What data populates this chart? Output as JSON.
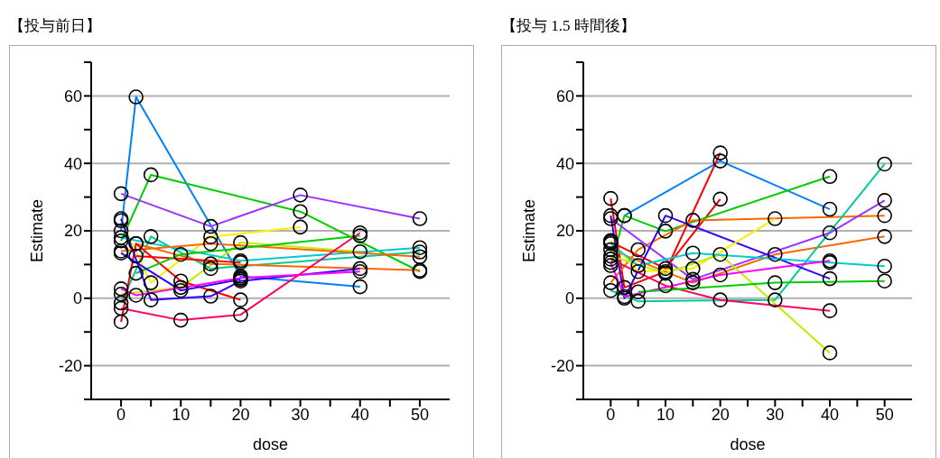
{
  "chart_data": [
    {
      "type": "line",
      "title": "【投与前日】",
      "xlabel": "dose",
      "ylabel": "Estimate",
      "xlim": [
        -5,
        55
      ],
      "ylim": [
        -30,
        70
      ],
      "marker": "circle",
      "grid": "y",
      "xticks": [
        0,
        {
          "value": 5,
          "label": null
        },
        10,
        {
          "value": 15,
          "label": null
        },
        20,
        {
          "value": 25,
          "label": null
        },
        30,
        {
          "value": 35,
          "label": null
        },
        40,
        {
          "value": 45,
          "label": null
        },
        50
      ],
      "yticks": [
        {
          "value": -30,
          "label": null
        },
        -20,
        {
          "value": -10,
          "label": null
        },
        0,
        {
          "value": 10,
          "label": null
        },
        20,
        {
          "value": 30,
          "label": null
        },
        40,
        {
          "value": 50,
          "label": null
        },
        60,
        {
          "value": 70,
          "label": null
        }
      ],
      "series": [
        {
          "color": "#0080ff",
          "x": [
            0,
            2.5,
            20,
            40
          ],
          "values": [
            20,
            59.7,
            6.5,
            3.4
          ]
        },
        {
          "color": "#00cc00",
          "x": [
            0,
            5,
            30,
            50
          ],
          "values": [
            17,
            36.6,
            25.7,
            7.9
          ]
        },
        {
          "color": "#9933ff",
          "x": [
            0,
            15,
            30,
            50
          ],
          "values": [
            31,
            21.3,
            30.6,
            23.6
          ]
        },
        {
          "color": "#ffee00",
          "x": [
            0,
            5,
            15,
            30
          ],
          "values": [
            23,
            4.6,
            18.2,
            21.1
          ]
        },
        {
          "color": "#bbee00",
          "x": [
            0,
            10,
            20,
            40
          ],
          "values": [
            1.2,
            3.2,
            16.5,
            13.8
          ]
        },
        {
          "color": "#00cc99",
          "x": [
            0,
            5,
            15,
            50
          ],
          "values": [
            -1.4,
            18.3,
            8.8,
            13.7
          ]
        },
        {
          "color": "#00cccc",
          "x": [
            0,
            20,
            50
          ],
          "values": [
            18,
            11.1,
            15
          ]
        },
        {
          "color": "#ff6600",
          "x": [
            0,
            15,
            50
          ],
          "values": [
            14,
            16.2,
            12.3
          ]
        },
        {
          "color": "#ff6600",
          "x": [
            2.5,
            15,
            50
          ],
          "values": [
            16.2,
            10.2,
            8.3
          ]
        },
        {
          "color": "#ff0000",
          "x": [
            0,
            2.5,
            10,
            20
          ],
          "values": [
            -7,
            16.2,
            5.1,
            -0.5
          ]
        },
        {
          "color": "#ff0000",
          "x": [
            2.5,
            20
          ],
          "values": [
            12.5,
            10.6
          ]
        },
        {
          "color": "#00cc00",
          "x": [
            2.5,
            10,
            40
          ],
          "values": [
            7.4,
            13,
            18.5
          ]
        },
        {
          "color": "#3300ff",
          "x": [
            0,
            5,
            15,
            20,
            40
          ],
          "values": [
            23.6,
            -0.5,
            0.6,
            5.1,
            8.8
          ]
        },
        {
          "color": "#3300ff",
          "x": [
            0,
            10,
            20
          ],
          "values": [
            13.4,
            2.3,
            5.6
          ]
        },
        {
          "color": "#ff00ff",
          "x": [
            0,
            2.5,
            20,
            40
          ],
          "values": [
            2.8,
            0.9,
            6,
            7.9
          ]
        },
        {
          "color": "#ff0066",
          "x": [
            0,
            10,
            20,
            40
          ],
          "values": [
            -3,
            -6.5,
            -4.9,
            19.4
          ]
        }
      ]
    },
    {
      "type": "line",
      "title": "【投与 1.5 時間後】",
      "xlabel": "dose",
      "ylabel": "Estimate",
      "xlim": [
        -5,
        55
      ],
      "ylim": [
        -30,
        70
      ],
      "marker": "circle",
      "grid": "y",
      "xticks": [
        0,
        {
          "value": 5,
          "label": null
        },
        10,
        {
          "value": 15,
          "label": null
        },
        20,
        {
          "value": 25,
          "label": null
        },
        30,
        {
          "value": 35,
          "label": null
        },
        40,
        {
          "value": 45,
          "label": null
        },
        50
      ],
      "yticks": [
        {
          "value": -30,
          "label": null
        },
        -20,
        {
          "value": -10,
          "label": null
        },
        0,
        {
          "value": 10,
          "label": null
        },
        20,
        {
          "value": 30,
          "label": null
        },
        40,
        {
          "value": 50,
          "label": null
        },
        60,
        {
          "value": 70,
          "label": null
        }
      ],
      "series": [
        {
          "color": "#0080ff",
          "x": [
            2.5,
            20,
            40
          ],
          "values": [
            24.5,
            40.7,
            26.4
          ]
        },
        {
          "color": "#ff0000",
          "x": [
            0,
            2.5,
            10,
            20
          ],
          "values": [
            29.6,
            3.2,
            7.9,
            43.1
          ]
        },
        {
          "color": "#ff0000",
          "x": [
            0,
            10,
            20
          ],
          "values": [
            16.7,
            8.8,
            29.4
          ]
        },
        {
          "color": "#00cc00",
          "x": [
            0,
            2.5,
            10,
            40
          ],
          "values": [
            9.7,
            24.5,
            19.9,
            36.1
          ]
        },
        {
          "color": "#ff6600",
          "x": [
            0,
            5,
            15,
            50
          ],
          "values": [
            4.6,
            14.4,
            23.1,
            24.5
          ]
        },
        {
          "color": "#ff6600",
          "x": [
            0,
            15,
            30,
            50
          ],
          "values": [
            14.4,
            4.6,
            13,
            18.3
          ]
        },
        {
          "color": "#00cc99",
          "x": [
            0,
            5,
            30,
            50
          ],
          "values": [
            2.3,
            -0.9,
            -0.5,
            39.8
          ]
        },
        {
          "color": "#9933ff",
          "x": [
            0,
            15,
            40,
            50
          ],
          "values": [
            23.6,
            5.6,
            19.4,
            29
          ]
        },
        {
          "color": "#3300ff",
          "x": [
            0,
            2.5,
            10,
            40
          ],
          "values": [
            24.5,
            0,
            24.5,
            5.8
          ]
        },
        {
          "color": "#ffee00",
          "x": [
            0,
            5,
            15,
            30
          ],
          "values": [
            17.1,
            7.9,
            8.8,
            23.6
          ]
        },
        {
          "color": "#bbee00",
          "x": [
            0,
            10,
            20,
            40
          ],
          "values": [
            12.5,
            7.4,
            13,
            -16.2
          ]
        },
        {
          "color": "#00cccc",
          "x": [
            0,
            5,
            15,
            40,
            50
          ],
          "values": [
            16.2,
            9.7,
            13.4,
            10.6,
            9.5
          ]
        },
        {
          "color": "#ff00ff",
          "x": [
            0,
            2.5,
            20,
            40
          ],
          "values": [
            10.6,
            0.5,
            6.9,
            11.1
          ]
        },
        {
          "color": "#ff0066",
          "x": [
            0,
            10,
            20,
            40
          ],
          "values": [
            11.6,
            3.7,
            -0.5,
            -3.7
          ]
        },
        {
          "color": "#00cc00",
          "x": [
            5,
            30,
            50
          ],
          "values": [
            1.9,
            4.6,
            5.1
          ]
        }
      ]
    }
  ]
}
